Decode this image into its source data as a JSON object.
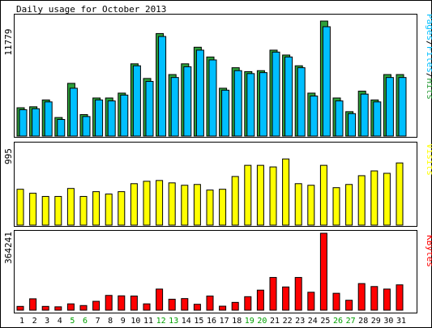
{
  "chart_data": {
    "type": "bar",
    "title": "Daily usage for October 2013",
    "categories": [
      "1",
      "2",
      "3",
      "4",
      "5",
      "6",
      "7",
      "8",
      "9",
      "10",
      "11",
      "12",
      "13",
      "14",
      "15",
      "16",
      "17",
      "18",
      "19",
      "20",
      "21",
      "22",
      "23",
      "24",
      "25",
      "26",
      "27",
      "28",
      "29",
      "30",
      "31"
    ],
    "weekend_days": [
      "5",
      "6",
      "12",
      "13",
      "19",
      "20",
      "26",
      "27"
    ],
    "colors": {
      "hits": "#2d9f3b",
      "files": "#00bfff",
      "pages": "#00bfff",
      "visits": "#ffff00",
      "kbytes": "#ff0000",
      "weekday_label": "#000000",
      "weekend_label": "#00a000",
      "legend_pages": "#00bfff",
      "legend_files": "#00bfff",
      "legend_hits": "#2d9f3b",
      "legend_visits": "#ffff00",
      "legend_kbytes": "#ff0000"
    },
    "panels": {
      "top": {
        "max_label": "11779",
        "ymax": 11779,
        "legend": {
          "pages": "Pages",
          "sep1": "/",
          "files": "Files",
          "sep2": "/",
          "hits": "Hits"
        },
        "hits": [
          2900,
          3000,
          3700,
          1900,
          5400,
          2200,
          3900,
          3900,
          4400,
          7400,
          5900,
          10500,
          6300,
          7400,
          9100,
          8100,
          4900,
          7000,
          6600,
          6700,
          8800,
          8300,
          7200,
          4400,
          11779,
          3900,
          2500,
          4600,
          3700,
          6300,
          6300
        ],
        "files": [
          2700,
          2800,
          3500,
          1700,
          4900,
          2000,
          3700,
          3600,
          4200,
          7200,
          5600,
          10200,
          6000,
          7100,
          8800,
          7800,
          4700,
          6700,
          6400,
          6500,
          8600,
          8100,
          7000,
          4100,
          11200,
          3600,
          2300,
          4300,
          3500,
          6000,
          6000
        ]
      },
      "middle": {
        "max_label": "995",
        "ymax": 995,
        "legend": {
          "visits": "Visits"
        },
        "visits": [
          450,
          400,
          360,
          360,
          460,
          360,
          420,
          390,
          420,
          520,
          550,
          560,
          530,
          500,
          510,
          440,
          450,
          610,
          750,
          750,
          730,
          830,
          520,
          500,
          750,
          470,
          510,
          620,
          680,
          650,
          780
        ]
      },
      "bottom": {
        "max_label": "364241",
        "ymax": 364241,
        "legend": {
          "kbytes": "KBytes"
        },
        "kbytes": [
          18000,
          54000,
          18000,
          16000,
          30000,
          22000,
          42000,
          70000,
          68000,
          67000,
          30000,
          100000,
          52000,
          55000,
          28000,
          67000,
          19000,
          37000,
          64000,
          95000,
          155000,
          110000,
          155000,
          85000,
          364241,
          80000,
          47000,
          126000,
          112000,
          100000,
          120000
        ]
      }
    }
  }
}
